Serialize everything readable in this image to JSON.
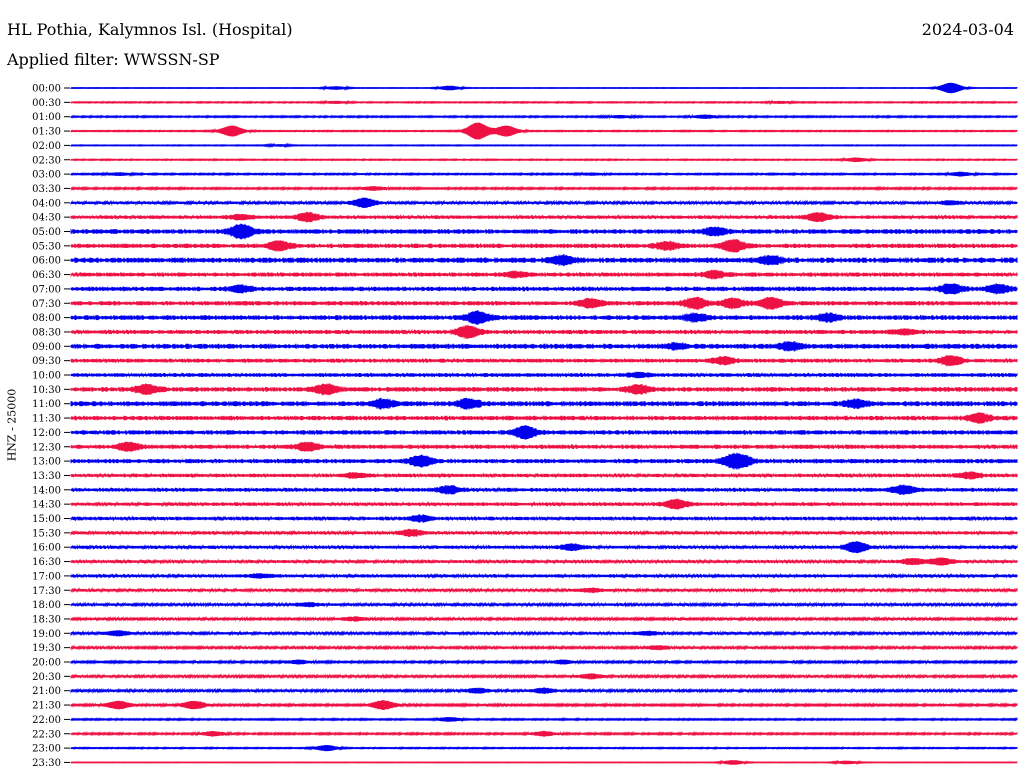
{
  "header": {
    "title": "HL Pothia, Kalymnos Isl. (Hospital)",
    "date": "2024-03-04",
    "filter": "Applied filter: WWSSN-SP"
  },
  "chart_data": {
    "type": "line",
    "title": "HL Pothia, Kalymnos Isl. (Hospital)",
    "subtitle": "Applied filter: WWSSN-SP",
    "ylabel": "HNZ - 25000",
    "xlabel": "",
    "colors": {
      "even": "#0000ee",
      "odd": "#ee1144"
    },
    "row_labels": [
      "00:00",
      "00:30",
      "01:00",
      "01:30",
      "02:00",
      "02:30",
      "03:00",
      "03:30",
      "04:00",
      "04:30",
      "05:00",
      "05:30",
      "06:00",
      "06:30",
      "07:00",
      "07:30",
      "08:00",
      "08:30",
      "09:00",
      "09:30",
      "10:00",
      "10:30",
      "11:00",
      "11:30",
      "12:00",
      "12:30",
      "13:00",
      "13:30",
      "14:00",
      "14:30",
      "15:00",
      "15:30",
      "16:00",
      "16:30",
      "17:00",
      "17:30",
      "18:00",
      "18:30",
      "19:00",
      "19:30",
      "20:00",
      "20:30",
      "21:00",
      "21:30",
      "22:00",
      "22:30",
      "23:00",
      "23:30"
    ],
    "noise_level": [
      0.2,
      0.4,
      0.5,
      0.4,
      0.3,
      0.4,
      0.5,
      0.6,
      0.9,
      1.2,
      1.6,
      1.5,
      1.8,
      1.4,
      1.5,
      1.5,
      1.6,
      1.4,
      1.7,
      1.3,
      1.3,
      1.6,
      1.7,
      1.5,
      1.5,
      1.4,
      1.5,
      1.2,
      1.3,
      1.2,
      1.2,
      1.1,
      1.1,
      1.0,
      1.1,
      0.9,
      0.9,
      0.8,
      0.9,
      0.8,
      0.7,
      0.8,
      0.8,
      0.7,
      0.5,
      0.6,
      0.4,
      0.2
    ],
    "events": [
      [
        [
          0.93,
          5.0
        ],
        [
          0.4,
          2.0
        ],
        [
          0.28,
          1.5
        ]
      ],
      [
        [
          0.28,
          1.0
        ],
        [
          0.75,
          1.0
        ]
      ],
      [
        [
          0.67,
          1.5
        ],
        [
          0.58,
          1.0
        ]
      ],
      [
        [
          0.17,
          5.0
        ],
        [
          0.43,
          8.0
        ],
        [
          0.46,
          5.0
        ]
      ],
      [
        [
          0.22,
          0.8
        ]
      ],
      [
        [
          0.83,
          1.8
        ]
      ],
      [
        [
          0.05,
          1.2
        ],
        [
          0.55,
          1.0
        ],
        [
          0.94,
          1.8
        ]
      ],
      [
        [
          0.32,
          1.5
        ]
      ],
      [
        [
          0.31,
          4.0
        ],
        [
          0.93,
          1.5
        ]
      ],
      [
        [
          0.18,
          2.0
        ],
        [
          0.25,
          3.5
        ],
        [
          0.79,
          3.5
        ]
      ],
      [
        [
          0.18,
          6.0
        ],
        [
          0.68,
          3.0
        ]
      ],
      [
        [
          0.22,
          4.0
        ],
        [
          0.63,
          3.0
        ],
        [
          0.7,
          5.0
        ]
      ],
      [
        [
          0.52,
          3.5
        ],
        [
          0.74,
          3.0
        ]
      ],
      [
        [
          0.68,
          3.0
        ],
        [
          0.47,
          2.0
        ]
      ],
      [
        [
          0.18,
          2.5
        ],
        [
          0.93,
          4.0
        ],
        [
          0.98,
          3.5
        ]
      ],
      [
        [
          0.55,
          3.5
        ],
        [
          0.66,
          4.5
        ],
        [
          0.7,
          4.0
        ],
        [
          0.74,
          4.5
        ]
      ],
      [
        [
          0.43,
          5.0
        ],
        [
          0.66,
          3.0
        ],
        [
          0.8,
          3.0
        ]
      ],
      [
        [
          0.42,
          5.0
        ],
        [
          0.88,
          2.0
        ]
      ],
      [
        [
          0.76,
          3.0
        ],
        [
          0.64,
          2.0
        ]
      ],
      [
        [
          0.69,
          3.0
        ],
        [
          0.93,
          4.0
        ]
      ],
      [
        [
          0.6,
          1.5
        ]
      ],
      [
        [
          0.08,
          3.5
        ],
        [
          0.27,
          4.0
        ],
        [
          0.6,
          3.5
        ]
      ],
      [
        [
          0.33,
          3.5
        ],
        [
          0.42,
          3.5
        ],
        [
          0.83,
          3.0
        ]
      ],
      [
        [
          0.96,
          3.5
        ]
      ],
      [
        [
          0.48,
          5.0
        ]
      ],
      [
        [
          0.06,
          3.5
        ],
        [
          0.25,
          3.5
        ]
      ],
      [
        [
          0.37,
          4.5
        ],
        [
          0.7,
          4.5
        ],
        [
          0.71,
          3.0
        ]
      ],
      [
        [
          0.3,
          2.0
        ],
        [
          0.95,
          2.5
        ]
      ],
      [
        [
          0.4,
          3.0
        ],
        [
          0.88,
          3.5
        ]
      ],
      [
        [
          0.64,
          4.0
        ]
      ],
      [
        [
          0.37,
          2.5
        ]
      ],
      [
        [
          0.36,
          2.5
        ]
      ],
      [
        [
          0.53,
          2.5
        ],
        [
          0.83,
          4.5
        ]
      ],
      [
        [
          0.92,
          3.0
        ],
        [
          0.89,
          2.5
        ]
      ],
      [
        [
          0.2,
          1.5
        ]
      ],
      [
        [
          0.55,
          1.5
        ]
      ],
      [
        [
          0.25,
          1.5
        ]
      ],
      [
        [
          0.3,
          1.5
        ]
      ],
      [
        [
          0.05,
          2.0
        ],
        [
          0.61,
          1.5
        ]
      ],
      [
        [
          0.62,
          1.5
        ]
      ],
      [
        [
          0.24,
          1.5
        ],
        [
          0.52,
          1.5
        ]
      ],
      [
        [
          0.55,
          2.0
        ]
      ],
      [
        [
          0.43,
          2.0
        ],
        [
          0.5,
          2.0
        ]
      ],
      [
        [
          0.05,
          3.5
        ],
        [
          0.13,
          3.5
        ],
        [
          0.33,
          4.0
        ]
      ],
      [
        [
          0.4,
          1.8
        ]
      ],
      [
        [
          0.15,
          2.0
        ],
        [
          0.5,
          2.0
        ]
      ],
      [
        [
          0.27,
          2.5
        ]
      ],
      [
        [
          0.7,
          2.0
        ],
        [
          0.82,
          1.5
        ]
      ]
    ]
  }
}
